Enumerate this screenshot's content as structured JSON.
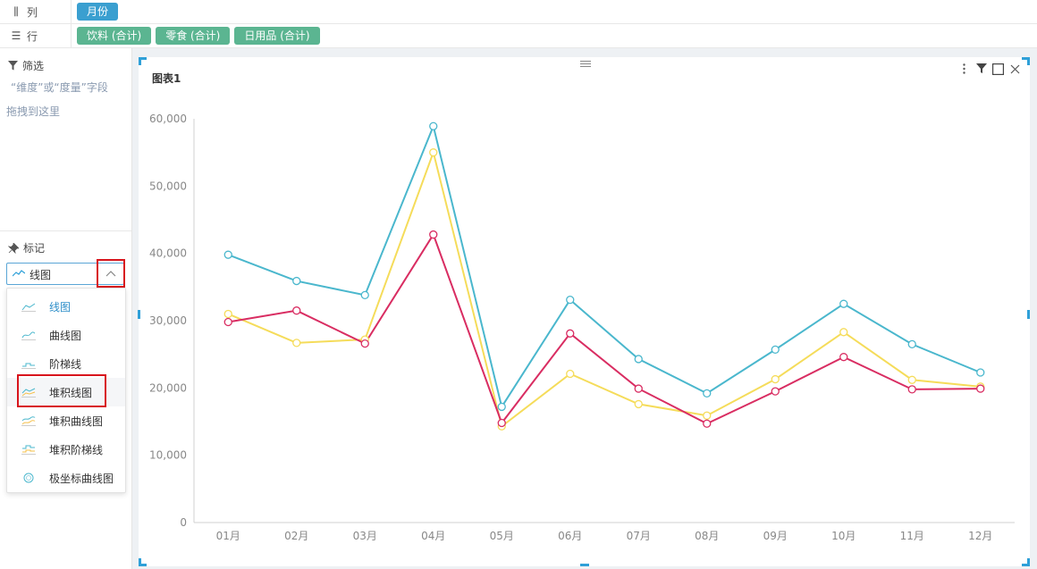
{
  "shelves": {
    "columns": {
      "label": "列",
      "icon": "columns-icon",
      "pills": [
        "月份"
      ]
    },
    "rows": {
      "label": "行",
      "icon": "rows-icon",
      "pills": [
        "饮料 (合计)",
        "零食 (合计)",
        "日用品 (合计)"
      ]
    }
  },
  "filter": {
    "title": "筛选",
    "hint_line1": "“维度”或“度量”字段",
    "hint_line2": "拖拽到这里"
  },
  "marks": {
    "title": "标记",
    "selected": "线图",
    "options": [
      "线图",
      "曲线图",
      "阶梯线",
      "堆积线图",
      "堆积曲线图",
      "堆积阶梯线",
      "极坐标曲线图"
    ]
  },
  "chart_card": {
    "title": "图表1"
  },
  "colors": {
    "accent": "#2fa0d8",
    "series1": "#4ab7cd",
    "series2": "#f5dc5a",
    "series3": "#d92d62",
    "highlight": "#d8141c"
  },
  "chart_data": {
    "type": "line",
    "title": "图表1",
    "categories": [
      "01月",
      "02月",
      "03月",
      "04月",
      "05月",
      "06月",
      "07月",
      "08月",
      "09月",
      "10月",
      "11月",
      "12月"
    ],
    "series": [
      {
        "values": [
          39800,
          35900,
          33800,
          58900,
          17200,
          33100,
          24300,
          19200,
          25700,
          32500,
          26500,
          22300
        ]
      },
      {
        "values": [
          31000,
          26700,
          27200,
          55000,
          14300,
          22100,
          17600,
          15900,
          21300,
          28300,
          21200,
          20200
        ]
      },
      {
        "values": [
          29800,
          31500,
          26600,
          42800,
          14800,
          28100,
          19900,
          14700,
          19500,
          24600,
          19800,
          19900
        ]
      }
    ],
    "yticks": [
      "0",
      "10,000",
      "20,000",
      "30,000",
      "40,000",
      "50,000",
      "60,000"
    ],
    "ylim": [
      0,
      60000
    ],
    "grid": false,
    "legend": "none"
  }
}
